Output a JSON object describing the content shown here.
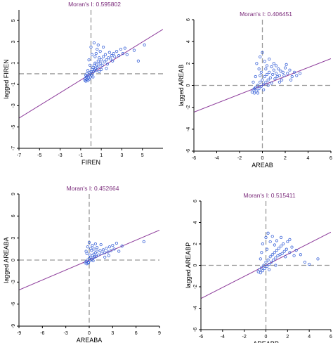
{
  "figure": {
    "colors": {
      "point": "#3a63d8",
      "fit_line": "#8c3a9a",
      "axes": "#000000",
      "crosshair": "#999999",
      "title": "#7a2a7a"
    }
  },
  "chart_data": [
    {
      "type": "scatter",
      "title": "Moran's I: 0.595802",
      "xlabel": "FIREN",
      "ylabel": "lagged FIREN",
      "xlim": [
        -7,
        7
      ],
      "ylim": [
        -7,
        6
      ],
      "xticks": [
        -7,
        -5,
        -3,
        -1,
        1,
        3,
        5
      ],
      "yticks": [
        -7,
        -5,
        -3,
        -1,
        1,
        3,
        5
      ],
      "xtick_labels": [
        "-7",
        "-5",
        "-3",
        "-1",
        "1",
        "3",
        "5"
      ],
      "ytick_labels": [
        "-7",
        "-5",
        "-3",
        "-1",
        "1",
        "3",
        "5"
      ],
      "slope": 0.595802,
      "grid": false,
      "points": [
        [
          -0.6,
          -0.6
        ],
        [
          -0.55,
          -0.45
        ],
        [
          -0.5,
          -0.7
        ],
        [
          -0.45,
          -0.3
        ],
        [
          -0.4,
          -0.55
        ],
        [
          -0.35,
          -0.2
        ],
        [
          -0.3,
          -0.65
        ],
        [
          -0.25,
          -0.4
        ],
        [
          -0.2,
          -0.1
        ],
        [
          -0.15,
          -0.5
        ],
        [
          -0.1,
          0.1
        ],
        [
          -0.05,
          -0.3
        ],
        [
          0.0,
          0.2
        ],
        [
          0.05,
          -0.15
        ],
        [
          0.1,
          0.4
        ],
        [
          0.15,
          0.0
        ],
        [
          0.2,
          0.6
        ],
        [
          0.25,
          0.2
        ],
        [
          0.3,
          0.8
        ],
        [
          0.35,
          0.35
        ],
        [
          0.4,
          1.0
        ],
        [
          0.45,
          0.5
        ],
        [
          0.5,
          0.3
        ],
        [
          0.55,
          0.9
        ],
        [
          0.6,
          0.6
        ],
        [
          0.7,
          1.2
        ],
        [
          0.75,
          0.7
        ],
        [
          0.8,
          1.5
        ],
        [
          0.9,
          1.0
        ],
        [
          1.0,
          1.3
        ],
        [
          1.1,
          0.8
        ],
        [
          1.2,
          1.6
        ],
        [
          1.3,
          1.1
        ],
        [
          1.4,
          1.8
        ],
        [
          1.5,
          1.3
        ],
        [
          1.6,
          0.9
        ],
        [
          1.7,
          1.5
        ],
        [
          1.8,
          2.0
        ],
        [
          1.9,
          1.4
        ],
        [
          2.0,
          1.7
        ],
        [
          2.1,
          1.2
        ],
        [
          2.2,
          1.9
        ],
        [
          2.3,
          1.6
        ],
        [
          2.5,
          2.1
        ],
        [
          2.7,
          1.7
        ],
        [
          2.9,
          2.3
        ],
        [
          3.1,
          1.9
        ],
        [
          3.3,
          2.4
        ],
        [
          3.5,
          1.8
        ],
        [
          4.2,
          2.2
        ],
        [
          4.6,
          1.2
        ],
        [
          5.2,
          2.7
        ],
        [
          0.0,
          2.5
        ],
        [
          0.3,
          2.9
        ],
        [
          0.6,
          2.3
        ],
        [
          0.1,
          1.8
        ],
        [
          0.7,
          2.7
        ],
        [
          -0.2,
          1.3
        ],
        [
          0.4,
          1.6
        ],
        [
          1.2,
          2.5
        ],
        [
          1.0,
          0.4
        ],
        [
          0.2,
          -0.3
        ],
        [
          -0.5,
          -0.15
        ],
        [
          -0.3,
          0.3
        ],
        [
          0.8,
          0.2
        ],
        [
          1.5,
          0.5
        ],
        [
          0.9,
          2.1
        ],
        [
          0.5,
          1.9
        ],
        [
          -0.1,
          0.8
        ],
        [
          -0.4,
          0.0
        ]
      ]
    },
    {
      "type": "scatter",
      "title": "Moran's I: 0.406451",
      "xlabel": "AREAB",
      "ylabel": "lagged AREAB",
      "xlim": [
        -6,
        6
      ],
      "ylim": [
        -6,
        6
      ],
      "xticks": [
        -6,
        -4,
        -2,
        0,
        2,
        4,
        6
      ],
      "yticks": [
        -6,
        -4,
        -2,
        0,
        2,
        4,
        6
      ],
      "xtick_labels": [
        "-6",
        "-4",
        "-2",
        "0",
        "2",
        "4",
        "6"
      ],
      "ytick_labels": [
        "-6",
        "-4",
        "-2",
        "0",
        "2",
        "4",
        "6"
      ],
      "slope": 0.406451,
      "grid": false,
      "points": [
        [
          -0.9,
          -0.6
        ],
        [
          -0.8,
          -0.4
        ],
        [
          -0.7,
          -0.7
        ],
        [
          -0.6,
          -0.2
        ],
        [
          -0.5,
          -0.5
        ],
        [
          -0.4,
          0.0
        ],
        [
          -0.3,
          -0.3
        ],
        [
          -0.2,
          0.3
        ],
        [
          -0.1,
          -0.1
        ],
        [
          0.0,
          0.5
        ],
        [
          0.1,
          0.1
        ],
        [
          0.2,
          0.8
        ],
        [
          0.3,
          0.3
        ],
        [
          0.4,
          1.0
        ],
        [
          0.5,
          0.5
        ],
        [
          0.6,
          1.2
        ],
        [
          0.7,
          0.7
        ],
        [
          0.8,
          0.2
        ],
        [
          0.9,
          1.0
        ],
        [
          1.0,
          1.4
        ],
        [
          1.1,
          0.6
        ],
        [
          1.2,
          1.1
        ],
        [
          1.3,
          0.8
        ],
        [
          1.4,
          1.5
        ],
        [
          1.5,
          0.9
        ],
        [
          1.6,
          1.3
        ],
        [
          1.7,
          0.5
        ],
        [
          1.8,
          1.2
        ],
        [
          1.9,
          0.9
        ],
        [
          2.0,
          1.6
        ],
        [
          2.2,
          1.1
        ],
        [
          2.4,
          1.4
        ],
        [
          2.6,
          0.8
        ],
        [
          2.8,
          1.2
        ],
        [
          3.0,
          0.9
        ],
        [
          3.3,
          1.1
        ],
        [
          -0.5,
          2.0
        ],
        [
          -0.2,
          2.6
        ],
        [
          0.0,
          3.0
        ],
        [
          0.2,
          2.2
        ],
        [
          0.4,
          1.8
        ],
        [
          -0.3,
          1.5
        ],
        [
          0.6,
          2.4
        ],
        [
          0.8,
          1.7
        ],
        [
          1.0,
          2.0
        ],
        [
          -0.6,
          0.8
        ],
        [
          -0.8,
          0.3
        ],
        [
          -0.4,
          -0.7
        ],
        [
          -0.7,
          -0.3
        ],
        [
          -0.2,
          0.9
        ],
        [
          0.3,
          1.5
        ],
        [
          1.5,
          0.3
        ],
        [
          2.5,
          0.5
        ],
        [
          0.1,
          -0.4
        ],
        [
          0.5,
          0.0
        ],
        [
          -0.1,
          1.2
        ],
        [
          1.2,
          1.8
        ],
        [
          2.1,
          1.9
        ]
      ]
    },
    {
      "type": "scatter",
      "title": "Moran's I: 0.452664",
      "xlabel": "AREABA",
      "ylabel": "lagged AREABA",
      "xlim": [
        -9,
        9
      ],
      "ylim": [
        -9,
        9
      ],
      "xticks": [
        -9,
        -6,
        -3,
        0,
        3,
        6,
        9
      ],
      "yticks": [
        -9,
        -6,
        -3,
        0,
        3,
        6,
        9
      ],
      "xtick_labels": [
        "-9",
        "-6",
        "-3",
        "0",
        "3",
        "6",
        "9"
      ],
      "ytick_labels": [
        "-9",
        "-6",
        "-3",
        "0",
        "3",
        "6",
        "9"
      ],
      "slope": 0.452664,
      "grid": false,
      "points": [
        [
          -0.5,
          -0.4
        ],
        [
          -0.4,
          -0.2
        ],
        [
          -0.3,
          -0.5
        ],
        [
          -0.2,
          0.0
        ],
        [
          -0.1,
          -0.3
        ],
        [
          0.0,
          0.2
        ],
        [
          0.1,
          -0.1
        ],
        [
          0.2,
          0.4
        ],
        [
          0.3,
          0.1
        ],
        [
          0.4,
          0.6
        ],
        [
          0.5,
          0.3
        ],
        [
          0.6,
          0.8
        ],
        [
          0.7,
          0.4
        ],
        [
          0.8,
          1.0
        ],
        [
          0.9,
          0.5
        ],
        [
          1.0,
          1.2
        ],
        [
          1.2,
          0.7
        ],
        [
          1.4,
          1.3
        ],
        [
          1.6,
          0.9
        ],
        [
          1.8,
          1.4
        ],
        [
          2.0,
          1.0
        ],
        [
          2.2,
          1.6
        ],
        [
          2.4,
          1.1
        ],
        [
          2.6,
          1.8
        ],
        [
          2.8,
          1.3
        ],
        [
          3.0,
          2.0
        ],
        [
          3.2,
          1.5
        ],
        [
          3.5,
          2.3
        ],
        [
          3.8,
          1.2
        ],
        [
          4.2,
          1.9
        ],
        [
          7.0,
          2.5
        ],
        [
          -0.2,
          1.8
        ],
        [
          0.0,
          2.4
        ],
        [
          0.2,
          1.6
        ],
        [
          0.4,
          2.0
        ],
        [
          -0.4,
          1.2
        ],
        [
          0.6,
          1.5
        ],
        [
          0.8,
          2.2
        ],
        [
          1.0,
          1.7
        ],
        [
          1.5,
          2.1
        ],
        [
          2.0,
          0.4
        ],
        [
          2.5,
          0.6
        ],
        [
          -0.3,
          0.9
        ],
        [
          0.1,
          0.7
        ],
        [
          0.3,
          1.3
        ],
        [
          -0.1,
          -0.4
        ],
        [
          0.5,
          -0.1
        ]
      ]
    },
    {
      "type": "scatter",
      "title": "Moran's I: 0.515411",
      "xlabel": "AREABP",
      "ylabel": "lagged AREABP",
      "xlim": [
        -6,
        6
      ],
      "ylim": [
        -6,
        6
      ],
      "xticks": [
        -6,
        -4,
        -2,
        0,
        2,
        4,
        6
      ],
      "yticks": [
        -6,
        -4,
        -2,
        0,
        2,
        4,
        6
      ],
      "xtick_labels": [
        "-6",
        "-4",
        "-2",
        "0",
        "2",
        "4",
        "6"
      ],
      "ytick_labels": [
        "-6",
        "-4",
        "-2",
        "0",
        "2",
        "4",
        "6"
      ],
      "slope": 0.515411,
      "grid": false,
      "points": [
        [
          -0.7,
          -0.6
        ],
        [
          -0.6,
          -0.4
        ],
        [
          -0.5,
          -0.7
        ],
        [
          -0.4,
          -0.2
        ],
        [
          -0.3,
          -0.5
        ],
        [
          -0.2,
          0.0
        ],
        [
          -0.1,
          -0.3
        ],
        [
          0.0,
          0.3
        ],
        [
          0.1,
          -0.1
        ],
        [
          0.2,
          0.5
        ],
        [
          0.3,
          0.1
        ],
        [
          0.4,
          0.8
        ],
        [
          0.5,
          0.3
        ],
        [
          0.6,
          1.0
        ],
        [
          0.7,
          0.5
        ],
        [
          0.8,
          1.2
        ],
        [
          0.9,
          0.7
        ],
        [
          1.0,
          1.4
        ],
        [
          1.1,
          0.9
        ],
        [
          1.2,
          1.6
        ],
        [
          1.3,
          1.0
        ],
        [
          1.4,
          1.8
        ],
        [
          1.5,
          1.1
        ],
        [
          1.6,
          2.0
        ],
        [
          1.7,
          1.3
        ],
        [
          1.8,
          0.8
        ],
        [
          1.9,
          1.5
        ],
        [
          2.0,
          2.2
        ],
        [
          2.2,
          1.2
        ],
        [
          2.4,
          1.7
        ],
        [
          2.6,
          0.9
        ],
        [
          2.8,
          1.4
        ],
        [
          3.2,
          1.0
        ],
        [
          3.6,
          0.3
        ],
        [
          4.0,
          0.1
        ],
        [
          4.8,
          0.6
        ],
        [
          -0.3,
          2.0
        ],
        [
          0.0,
          2.6
        ],
        [
          0.2,
          3.0
        ],
        [
          0.4,
          2.2
        ],
        [
          0.6,
          2.7
        ],
        [
          0.8,
          1.9
        ],
        [
          -0.4,
          1.2
        ],
        [
          0.1,
          1.5
        ],
        [
          1.0,
          2.3
        ],
        [
          1.4,
          2.6
        ],
        [
          0.3,
          -0.4
        ],
        [
          -0.5,
          0.6
        ],
        [
          0.9,
          0.0
        ],
        [
          2.2,
          2.4
        ]
      ]
    }
  ]
}
